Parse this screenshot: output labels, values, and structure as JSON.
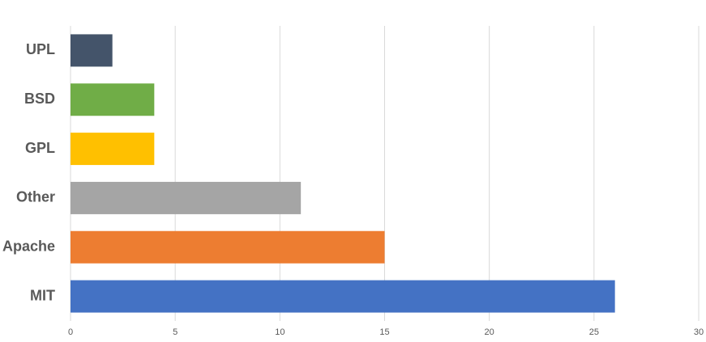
{
  "chart_data": {
    "type": "bar",
    "orientation": "horizontal",
    "categories": [
      "UPL",
      "BSD",
      "GPL",
      "Other",
      "Apache",
      "MIT"
    ],
    "values": [
      2,
      4,
      4,
      11,
      15,
      26
    ],
    "colors": [
      "#44546a",
      "#70ad47",
      "#ffc000",
      "#a5a5a5",
      "#ed7d31",
      "#4472c4"
    ],
    "xlim": [
      0,
      30
    ],
    "xticks": [
      0,
      5,
      10,
      15,
      20,
      25,
      30
    ],
    "grid": true
  }
}
